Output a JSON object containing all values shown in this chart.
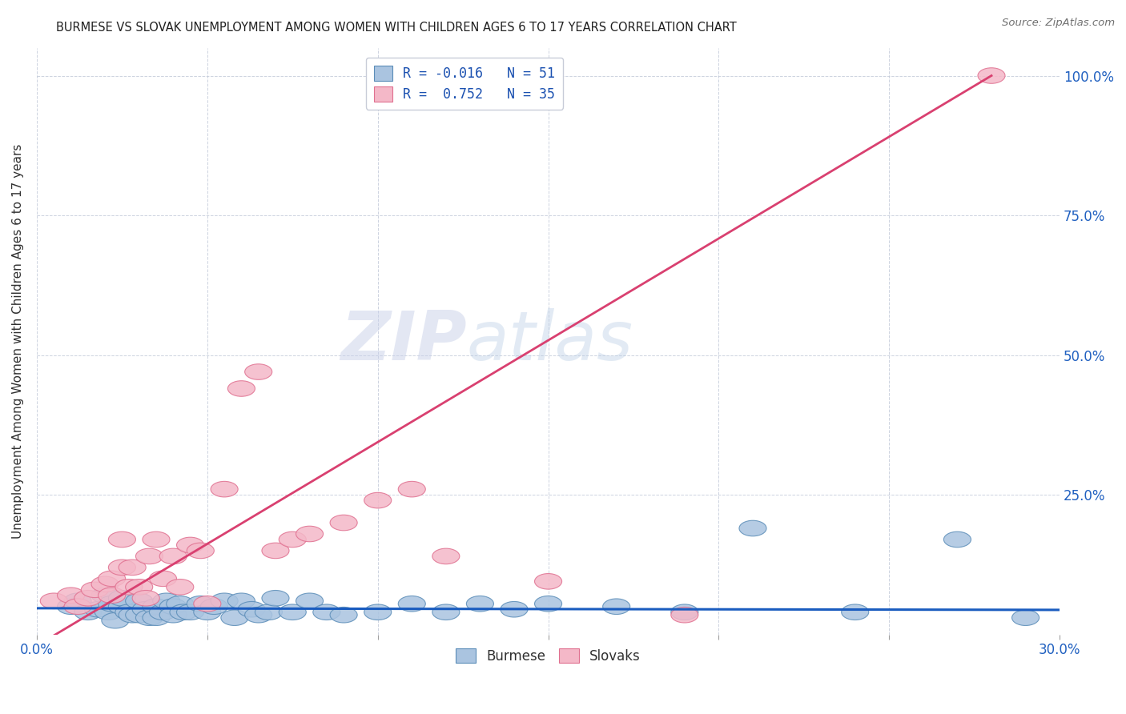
{
  "title": "BURMESE VS SLOVAK UNEMPLOYMENT AMONG WOMEN WITH CHILDREN AGES 6 TO 17 YEARS CORRELATION CHART",
  "source": "Source: ZipAtlas.com",
  "ylabel": "Unemployment Among Women with Children Ages 6 to 17 years",
  "xlim": [
    0.0,
    0.3
  ],
  "ylim": [
    0.0,
    1.05
  ],
  "burmese_color": "#aac4e0",
  "burmese_edge_color": "#5b8db8",
  "slovak_color": "#f4b8c8",
  "slovak_edge_color": "#e07090",
  "burmese_line_color": "#1a5cbf",
  "slovak_line_color": "#d94070",
  "legend_R_burmese": "-0.016",
  "legend_N_burmese": "51",
  "legend_R_slovak": "0.752",
  "legend_N_slovak": "35",
  "burmese_x": [
    0.01,
    0.012,
    0.015,
    0.018,
    0.02,
    0.021,
    0.022,
    0.023,
    0.025,
    0.025,
    0.027,
    0.028,
    0.03,
    0.03,
    0.032,
    0.033,
    0.035,
    0.035,
    0.037,
    0.038,
    0.04,
    0.04,
    0.042,
    0.043,
    0.045,
    0.048,
    0.05,
    0.052,
    0.055,
    0.058,
    0.06,
    0.063,
    0.065,
    0.068,
    0.07,
    0.075,
    0.08,
    0.085,
    0.09,
    0.1,
    0.11,
    0.12,
    0.13,
    0.14,
    0.15,
    0.17,
    0.19,
    0.21,
    0.24,
    0.27,
    0.29
  ],
  "burmese_y": [
    0.05,
    0.06,
    0.04,
    0.045,
    0.07,
    0.04,
    0.055,
    0.025,
    0.05,
    0.065,
    0.04,
    0.035,
    0.035,
    0.06,
    0.045,
    0.03,
    0.05,
    0.03,
    0.04,
    0.06,
    0.05,
    0.035,
    0.055,
    0.04,
    0.04,
    0.055,
    0.04,
    0.05,
    0.06,
    0.03,
    0.06,
    0.045,
    0.035,
    0.04,
    0.065,
    0.04,
    0.06,
    0.04,
    0.035,
    0.04,
    0.055,
    0.04,
    0.055,
    0.045,
    0.055,
    0.05,
    0.04,
    0.19,
    0.04,
    0.17,
    0.03
  ],
  "slovak_x": [
    0.005,
    0.01,
    0.012,
    0.015,
    0.017,
    0.02,
    0.022,
    0.022,
    0.025,
    0.025,
    0.027,
    0.028,
    0.03,
    0.032,
    0.033,
    0.035,
    0.037,
    0.04,
    0.042,
    0.045,
    0.048,
    0.05,
    0.055,
    0.06,
    0.065,
    0.07,
    0.075,
    0.08,
    0.09,
    0.1,
    0.11,
    0.12,
    0.15,
    0.19,
    0.28
  ],
  "slovak_y": [
    0.06,
    0.07,
    0.05,
    0.065,
    0.08,
    0.09,
    0.1,
    0.07,
    0.12,
    0.17,
    0.085,
    0.12,
    0.085,
    0.065,
    0.14,
    0.17,
    0.1,
    0.14,
    0.085,
    0.16,
    0.15,
    0.055,
    0.26,
    0.44,
    0.47,
    0.15,
    0.17,
    0.18,
    0.2,
    0.24,
    0.26,
    0.14,
    0.095,
    0.035,
    1.0
  ],
  "slovak_line_x0": 0.0,
  "slovak_line_y0": -0.02,
  "slovak_line_x1": 0.28,
  "slovak_line_y1": 1.0,
  "burmese_line_x0": 0.0,
  "burmese_line_y0": 0.047,
  "burmese_line_x1": 0.3,
  "burmese_line_y1": 0.044
}
